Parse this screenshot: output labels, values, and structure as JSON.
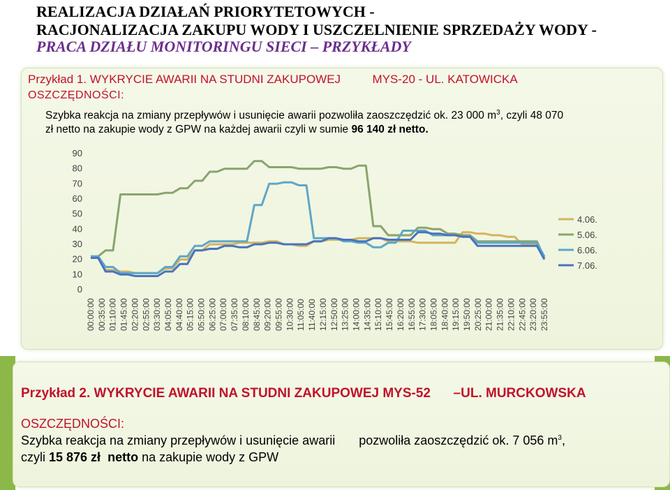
{
  "header": {
    "line1": "REALIZACJA DZIAŁAŃ PRIORYTETOWYCH -",
    "line2": "RACJONALIZACJA ZAKUPU WODY I USZCZELNIENIE SPRZEDAŻY WODY -",
    "line3": "PRACA DZIAŁU MONITORINGU SIECI – PRZYKŁADY"
  },
  "example1": {
    "heading": "Przykład 1. WYKRYCIE AWARII NA STUDNI ZAKUPOWEJ",
    "location": "MYS-20  - UL. KATOWICKA",
    "savings_label": "OSZCZĘDNOŚCI:",
    "body_line1_pre": "Szybka reakcja na zmiany przepływów i usunięcie awarii pozwoliła zaoszczędzić ok. 23 000 m",
    "body_line1_sup": "3",
    "body_line1_post": ", czyli 48 070",
    "body_line2_pre": "zł netto na zakupie wody z GPW na każdej awarii czyli  w sumie ",
    "body_line2_bold": "96 140 zł netto."
  },
  "example2": {
    "heading_pre": "Przykład 2. WYKRYCIE AWARII NA STUDNI ZAKUPOWEJ MYS-52",
    "heading_post": "–UL. MURCKOWSKA",
    "savings_label": "OSZCZĘDNOŚCI:",
    "body_line1_pre": "Szybka reakcja na zmiany przepływów i usunięcie awarii",
    "body_line1_mid": "pozwoliła zaoszczędzić ok. 7 056 m",
    "body_line1_sup": "3",
    "body_line1_post": ",",
    "body_line2_pre": "czyli ",
    "body_line2_bold1": "15 876 zł",
    "body_line2_space": "  ",
    "body_line2_bold2": "netto",
    "body_line2_post": " na zakupie wody z GPW"
  },
  "chart_data": {
    "type": "line",
    "ylim": [
      0,
      90
    ],
    "yticks": [
      0,
      10,
      20,
      30,
      40,
      50,
      60,
      70,
      80,
      90
    ],
    "x_tick_labels": [
      "00:00:00",
      "00:35:00",
      "01:10:00",
      "01:45:00",
      "02:20:00",
      "02:55:00",
      "03:30:00",
      "04:05:00",
      "04:40:00",
      "05:15:00",
      "05:50:00",
      "06:25:00",
      "07:00:00",
      "07:35:00",
      "08:10:00",
      "08:45:00",
      "09:20:00",
      "09:55:00",
      "10:30:00",
      "11:05:00",
      "11:40:00",
      "12:15:00",
      "12:50:00",
      "13:25:00",
      "14:00:00",
      "14:35:00",
      "15:10:00",
      "15:45:00",
      "16:20:00",
      "16:55:00",
      "17:30:00",
      "18:05:00",
      "18:40:00",
      "19:15:00",
      "19:50:00",
      "20:25:00",
      "21:00:00",
      "21:35:00",
      "22:10:00",
      "22:45:00",
      "23:20:00",
      "23:55:00"
    ],
    "series": [
      {
        "name": "4.06.",
        "color": "#d4b45e",
        "values": [
          21,
          21,
          13,
          13,
          12,
          12,
          11,
          11,
          11,
          11,
          14,
          14,
          20,
          20,
          26,
          26,
          30,
          30,
          30,
          30,
          31,
          31,
          31,
          31,
          32,
          32,
          30,
          30,
          29,
          29,
          32,
          32,
          33,
          33,
          33,
          33,
          34,
          34,
          34,
          34,
          32,
          32,
          32,
          32,
          31,
          31,
          31,
          31,
          31,
          31,
          38,
          38,
          37,
          37,
          36,
          36,
          35,
          35,
          30,
          30,
          30,
          21
        ]
      },
      {
        "name": "5.06.",
        "color": "#8aa46e",
        "values": [
          22,
          22,
          26,
          26,
          63,
          63,
          63,
          63,
          63,
          63,
          64,
          64,
          67,
          67,
          72,
          72,
          78,
          78,
          80,
          80,
          80,
          80,
          85,
          85,
          81,
          81,
          81,
          81,
          80,
          80,
          80,
          80,
          81,
          81,
          80,
          80,
          82,
          82,
          42,
          42,
          36,
          36,
          36,
          36,
          41,
          41,
          40,
          40,
          37,
          37,
          36,
          36,
          32,
          32,
          32,
          32,
          32,
          32,
          32,
          32,
          32,
          21
        ]
      },
      {
        "name": "6.06.",
        "color": "#5fa7c8",
        "values": [
          22,
          22,
          15,
          15,
          11,
          11,
          11,
          11,
          11,
          11,
          15,
          15,
          22,
          22,
          29,
          29,
          32,
          32,
          32,
          32,
          32,
          32,
          56,
          56,
          70,
          70,
          71,
          71,
          69,
          69,
          34,
          34,
          34,
          34,
          32,
          32,
          31,
          31,
          28,
          28,
          31,
          31,
          39,
          39,
          39,
          39,
          36,
          36,
          36,
          36,
          35,
          35,
          31,
          31,
          31,
          31,
          31,
          31,
          31,
          31,
          31,
          22
        ]
      },
      {
        "name": "7.06.",
        "color": "#4a73be",
        "values": [
          21,
          21,
          12,
          12,
          10,
          10,
          9,
          9,
          9,
          9,
          12,
          12,
          17,
          17,
          26,
          26,
          27,
          27,
          29,
          29,
          28,
          28,
          30,
          30,
          31,
          31,
          30,
          30,
          30,
          30,
          32,
          32,
          34,
          34,
          33,
          33,
          32,
          32,
          34,
          34,
          33,
          33,
          33,
          33,
          38,
          38,
          37,
          37,
          36,
          36,
          35,
          35,
          29,
          29,
          29,
          29,
          29,
          29,
          29,
          29,
          29,
          20
        ]
      }
    ]
  }
}
